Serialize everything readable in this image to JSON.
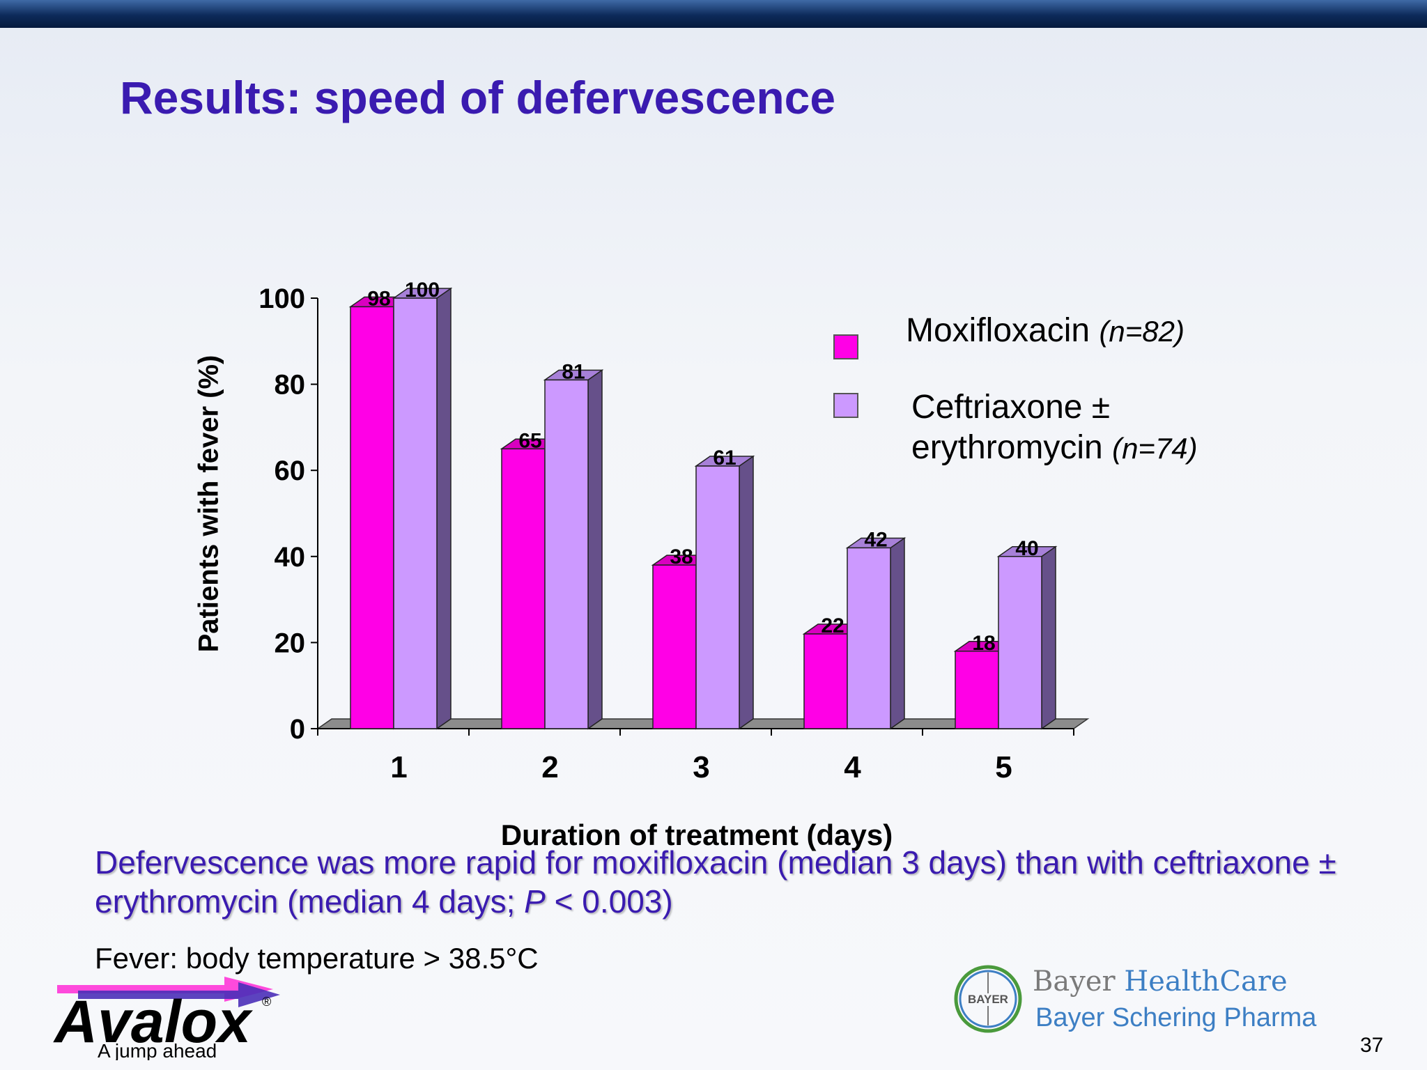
{
  "slide": {
    "title": "Results: speed of defervescence",
    "conclusion_part1": "Defervescence was more rapid for moxifloxacin (median 3 days) than with ceftriaxone ± erythromycin (median 4 days; ",
    "conclusion_p": "P",
    "conclusion_part2": " < 0.003)",
    "footnote": "Fever: body temperature > 38.5°C",
    "page_number": "37"
  },
  "legend": {
    "item1_name": "Moxifloxacin",
    "item1_n": "(n=82)",
    "item2_name_line1": "Ceftriaxone ±",
    "item2_name_line2": "erythromycin",
    "item2_n": "(n=74)"
  },
  "logos": {
    "avalox_name": "Avalox",
    "avalox_registered": "®",
    "avalox_tagline": "A jump ahead",
    "bayer_letters": "BAYER",
    "bayer_line1_a": "Bayer ",
    "bayer_line1_b": "HealthCare",
    "bayer_line2": "Bayer Schering Pharma"
  },
  "colors": {
    "title": "#3a1bb0",
    "moxifloxacin": "#ff00e6",
    "ceftriaxone": "#cc99ff",
    "topbar": "#0d2a5a"
  },
  "chart_data": {
    "type": "bar",
    "style": "3d-clustered",
    "categories": [
      "1",
      "2",
      "3",
      "4",
      "5"
    ],
    "series": [
      {
        "name": "Moxifloxacin (n=82)",
        "values": [
          98,
          65,
          38,
          22,
          18
        ]
      },
      {
        "name": "Ceftriaxone ± erythromycin (n=74)",
        "values": [
          100,
          81,
          61,
          42,
          40
        ]
      }
    ],
    "xlabel": "Duration of treatment (days)",
    "ylabel": "Patients with fever (%)",
    "ylim": [
      0,
      100
    ],
    "yticks": [
      0,
      20,
      40,
      60,
      80,
      100
    ],
    "data_labels": true,
    "legend_position": "right",
    "grid": false
  }
}
